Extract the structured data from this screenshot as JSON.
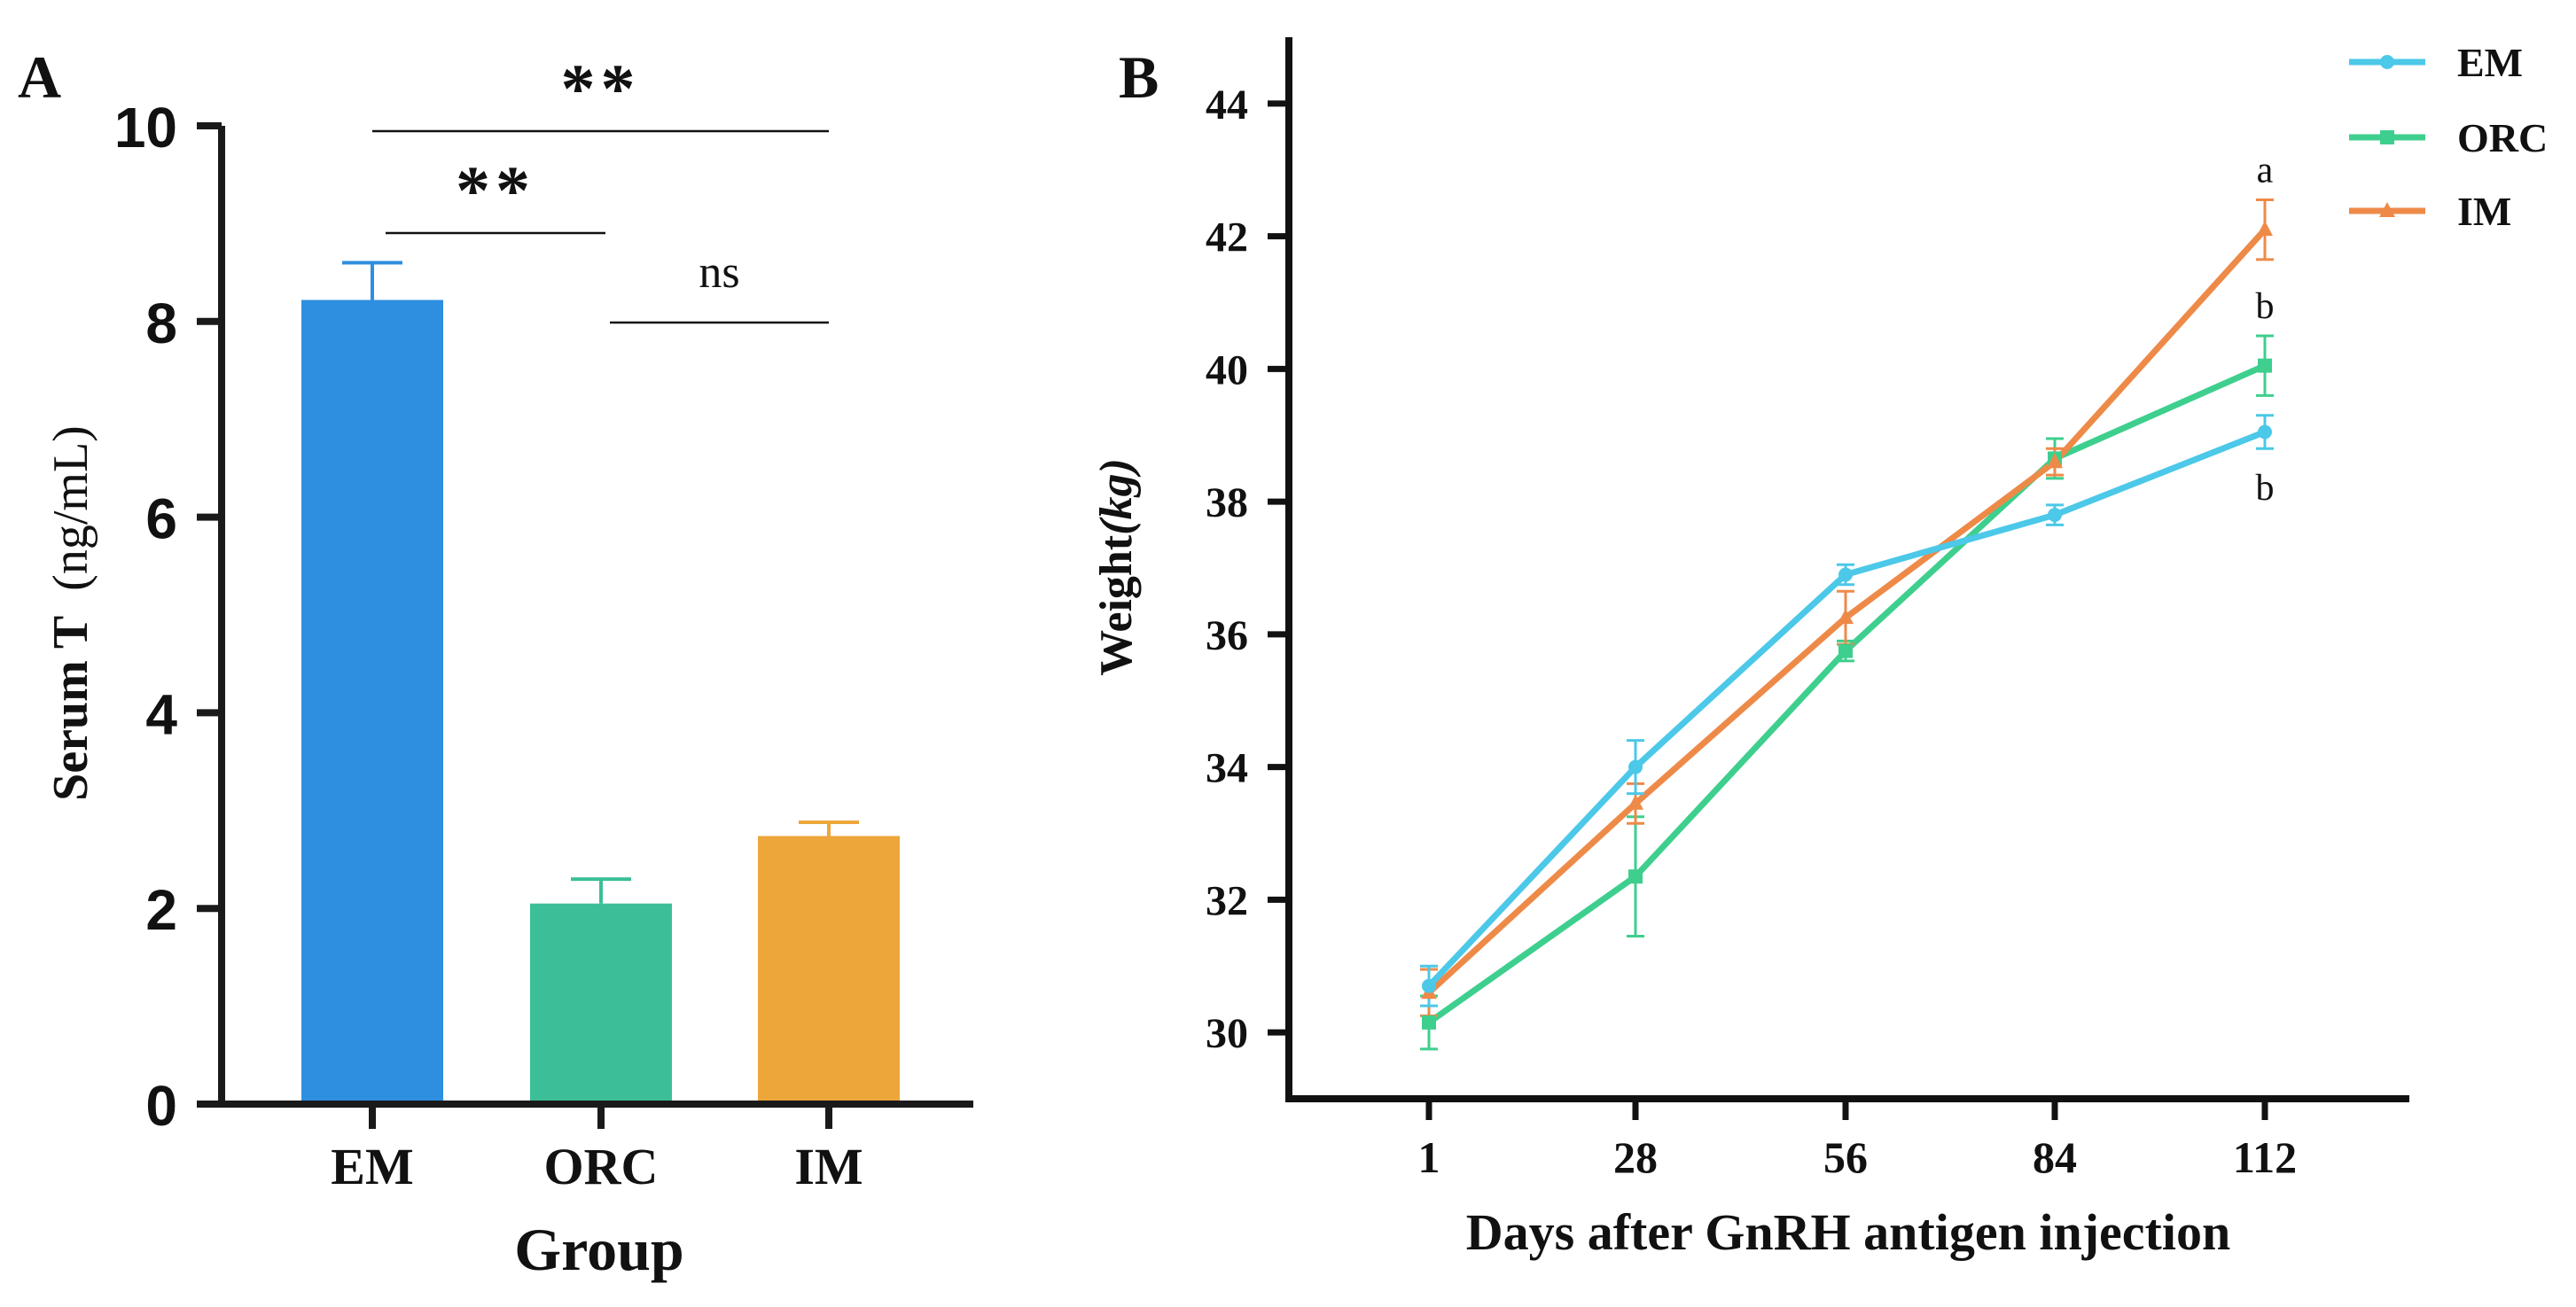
{
  "panels": {
    "a_letter": "A",
    "b_letter": "B"
  },
  "chart_data": [
    {
      "type": "bar",
      "panel": "A",
      "categories": [
        "EM",
        "ORC",
        "IM"
      ],
      "values": [
        8.22,
        2.05,
        2.74
      ],
      "errors": [
        0.38,
        0.25,
        0.14
      ],
      "colors": [
        "#2E8FE0",
        "#3CBF98",
        "#EDA63A"
      ],
      "xlabel": "Group",
      "ylabel_bold": "Serum T",
      "ylabel_unit": "(ng/mL)",
      "ylim": [
        0,
        10
      ],
      "yticks": [
        "0",
        "2",
        "4",
        "6",
        "8",
        "10"
      ],
      "significance": [
        {
          "from": "EM",
          "to": "IM",
          "label": "**"
        },
        {
          "from": "EM",
          "to": "ORC",
          "label": "**"
        },
        {
          "from": "ORC",
          "to": "IM",
          "label": "ns"
        }
      ],
      "grid": false
    },
    {
      "type": "line",
      "panel": "B",
      "x": [
        1,
        28,
        56,
        84,
        112
      ],
      "xticks": [
        "1",
        "28",
        "56",
        "84",
        "112"
      ],
      "xlabel": "Days after GnRH antigen injection",
      "ylabel_main": "Weight",
      "ylabel_unit": "(kg)",
      "ylim": [
        29,
        45
      ],
      "yticks": [
        "30",
        "32",
        "34",
        "36",
        "38",
        "40",
        "42",
        "44"
      ],
      "legend_position": "top-right",
      "grid": false,
      "series": [
        {
          "name": "EM",
          "color": "#4CC8E8",
          "marker": "circle",
          "values": [
            30.7,
            34.0,
            36.9,
            37.8,
            39.05
          ],
          "errors": [
            0.3,
            0.4,
            0.15,
            0.15,
            0.25
          ]
        },
        {
          "name": "ORC",
          "color": "#3ECF8E",
          "marker": "square",
          "values": [
            30.15,
            32.35,
            35.75,
            38.65,
            40.05
          ],
          "errors": [
            0.4,
            0.9,
            0.15,
            0.3,
            0.45
          ]
        },
        {
          "name": "IM",
          "color": "#EE8A48",
          "marker": "triangle",
          "values": [
            30.6,
            33.45,
            36.25,
            38.6,
            42.1
          ],
          "errors": [
            0.35,
            0.3,
            0.4,
            0.2,
            0.45
          ]
        }
      ],
      "annotations": [
        {
          "series": "IM",
          "x": 112,
          "text": "a"
        },
        {
          "series": "ORC",
          "x": 112,
          "text": "b"
        },
        {
          "series": "EM",
          "x": 112,
          "text": "b"
        }
      ]
    }
  ]
}
